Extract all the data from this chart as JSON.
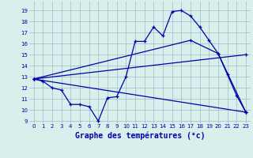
{
  "title": "Graphe des températures (°c)",
  "background_color": "#d8f0ec",
  "grid_color": "#a0b8c8",
  "line_color": "#0000aa",
  "xlim": [
    -0.5,
    23.5
  ],
  "ylim": [
    8.8,
    19.8
  ],
  "yticks": [
    9,
    10,
    11,
    12,
    13,
    14,
    15,
    16,
    17,
    18,
    19
  ],
  "xticks": [
    0,
    1,
    2,
    3,
    4,
    5,
    6,
    7,
    8,
    9,
    10,
    11,
    12,
    13,
    14,
    15,
    16,
    17,
    18,
    19,
    20,
    21,
    22,
    23
  ],
  "series0_x": [
    0,
    1,
    2,
    3,
    4,
    5,
    6,
    7,
    8,
    9,
    10,
    11,
    12,
    13,
    14,
    15,
    16,
    17,
    18,
    19,
    20,
    21,
    22,
    23
  ],
  "series0_y": [
    12.8,
    12.6,
    12.0,
    11.8,
    10.5,
    10.5,
    10.3,
    9.0,
    11.1,
    11.2,
    13.0,
    16.2,
    16.2,
    17.5,
    16.7,
    18.9,
    19.0,
    18.5,
    17.5,
    16.3,
    15.1,
    13.2,
    11.3,
    9.8
  ],
  "series1_x": [
    0,
    17,
    20,
    23
  ],
  "series1_y": [
    12.8,
    16.3,
    15.1,
    9.8
  ],
  "series2_x": [
    0,
    23
  ],
  "series2_y": [
    12.8,
    15.0
  ],
  "series3_x": [
    0,
    23
  ],
  "series3_y": [
    12.8,
    9.8
  ],
  "xlabel_fontsize": 7,
  "tick_fontsize": 5
}
